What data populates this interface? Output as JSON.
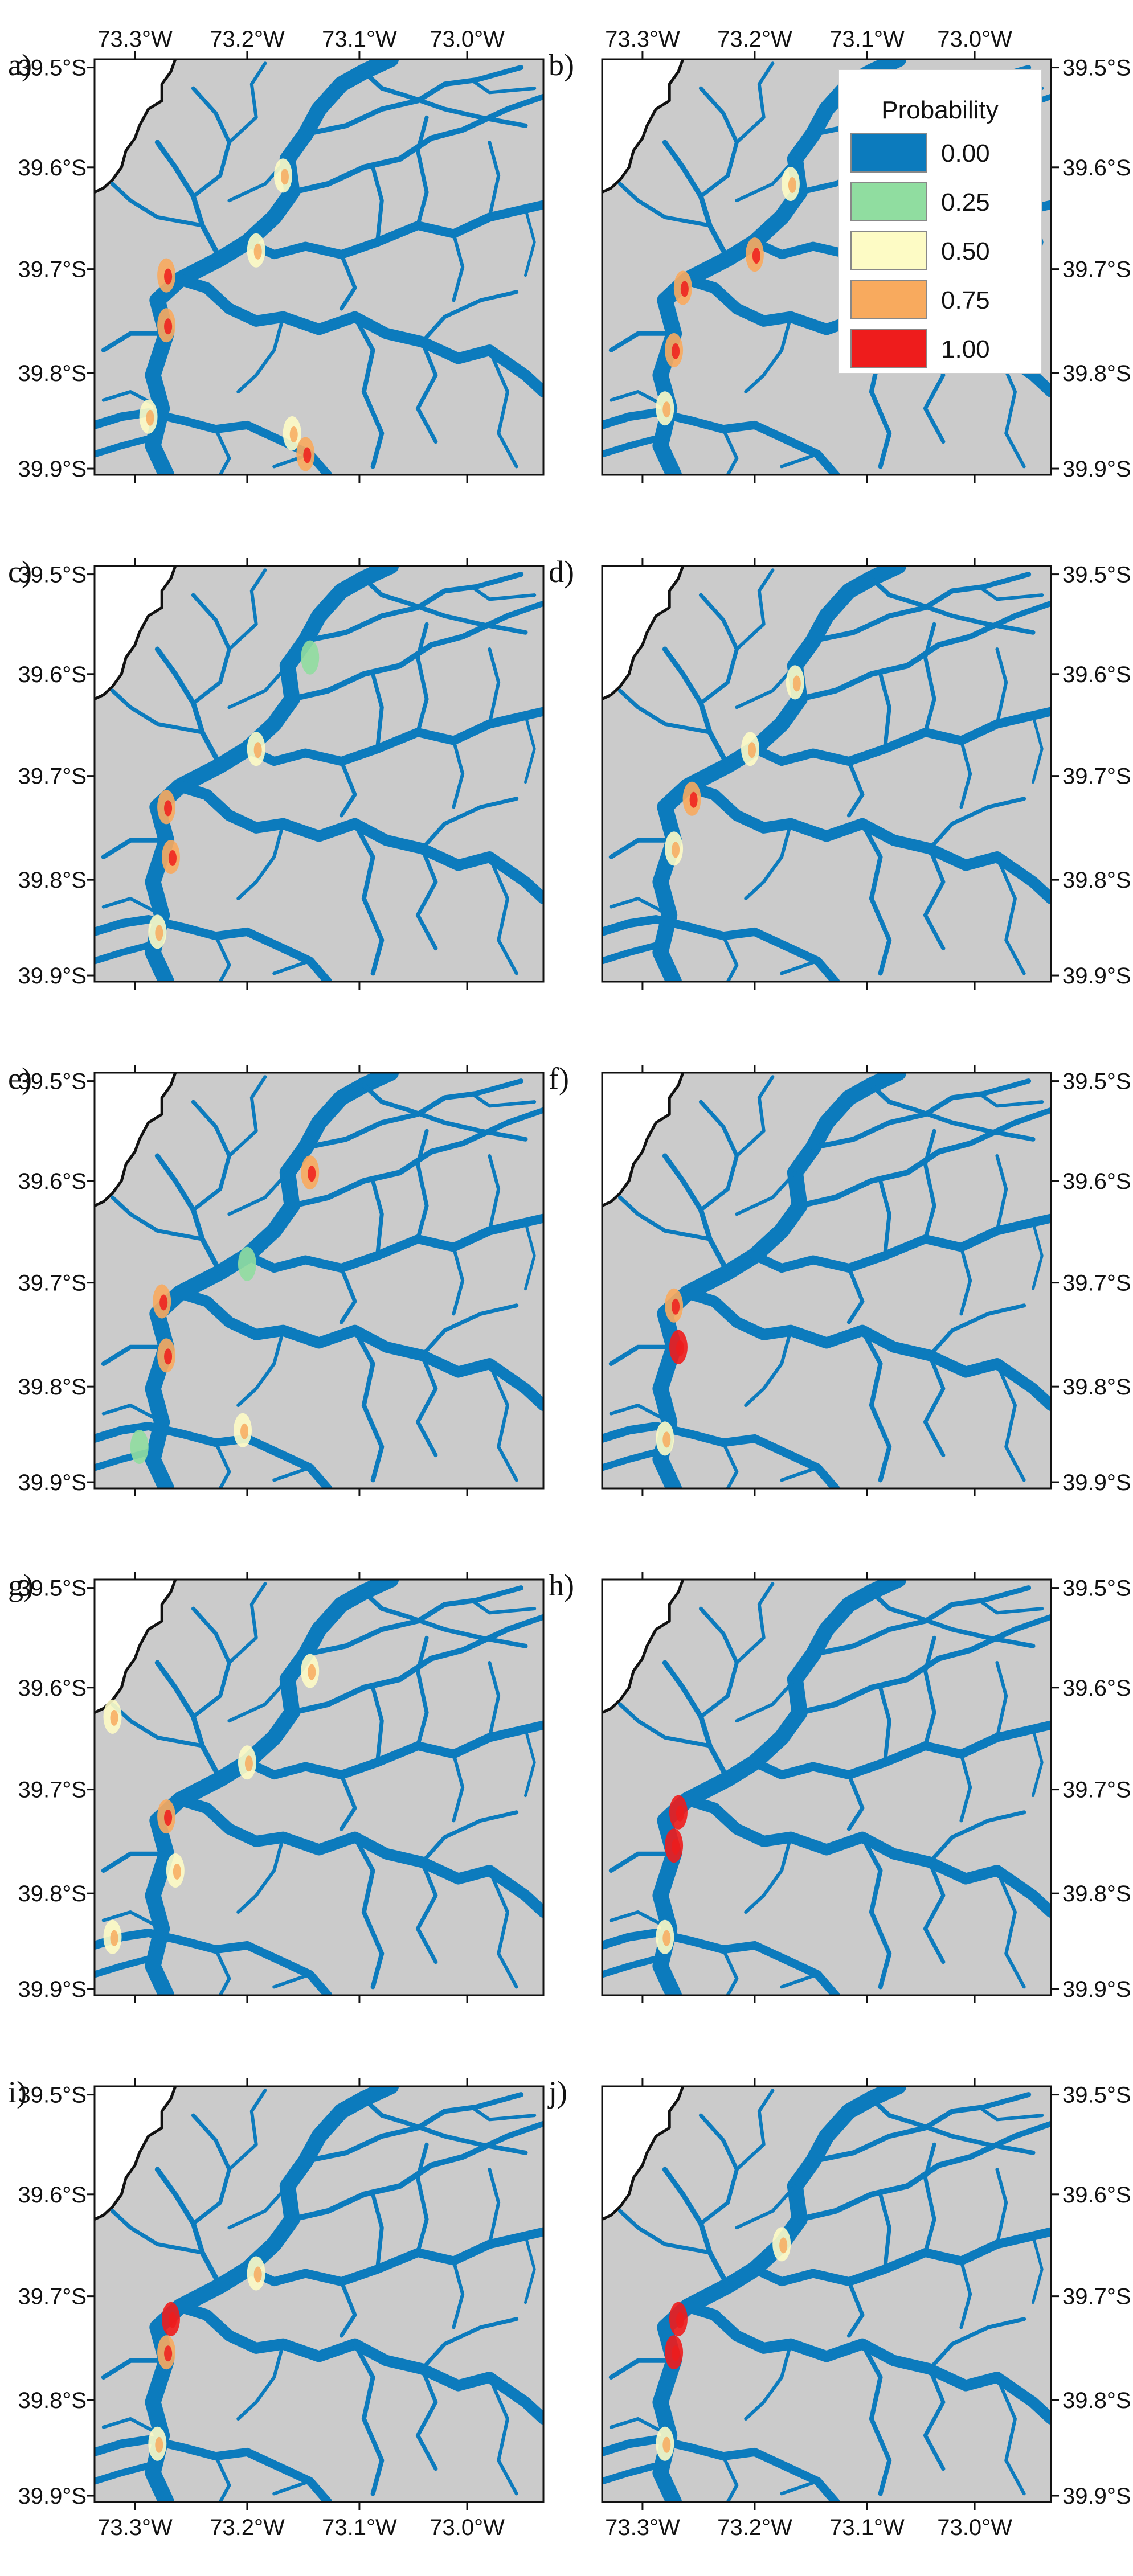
{
  "panels": [
    {
      "id": "a",
      "label": "a)",
      "hotspots": [
        [
          0.42,
          0.28,
          2
        ],
        [
          0.36,
          0.46,
          2
        ],
        [
          0.16,
          0.52,
          3
        ],
        [
          0.16,
          0.64,
          3
        ],
        [
          0.12,
          0.86,
          2
        ],
        [
          0.44,
          0.9,
          2
        ],
        [
          0.47,
          0.95,
          3
        ]
      ]
    },
    {
      "id": "b",
      "label": "b)",
      "hotspots": [
        [
          0.42,
          0.3,
          2
        ],
        [
          0.34,
          0.47,
          3
        ],
        [
          0.18,
          0.55,
          3
        ],
        [
          0.16,
          0.7,
          3
        ],
        [
          0.14,
          0.84,
          2
        ]
      ]
    },
    {
      "id": "c",
      "label": "c)",
      "hotspots": [
        [
          0.48,
          0.22,
          1
        ],
        [
          0.36,
          0.44,
          2
        ],
        [
          0.16,
          0.58,
          3
        ],
        [
          0.17,
          0.7,
          3
        ],
        [
          0.14,
          0.88,
          2
        ]
      ]
    },
    {
      "id": "d",
      "label": "d)",
      "hotspots": [
        [
          0.43,
          0.28,
          2
        ],
        [
          0.33,
          0.44,
          2
        ],
        [
          0.2,
          0.56,
          3
        ],
        [
          0.16,
          0.68,
          2
        ]
      ]
    },
    {
      "id": "e",
      "label": "e)",
      "hotspots": [
        [
          0.48,
          0.24,
          3
        ],
        [
          0.34,
          0.46,
          1
        ],
        [
          0.15,
          0.55,
          3
        ],
        [
          0.16,
          0.68,
          3
        ],
        [
          0.1,
          0.9,
          1
        ],
        [
          0.33,
          0.86,
          2
        ]
      ]
    },
    {
      "id": "f",
      "label": "f)",
      "hotspots": [
        [
          0.16,
          0.56,
          3
        ],
        [
          0.17,
          0.66,
          4
        ],
        [
          0.14,
          0.88,
          2
        ]
      ]
    },
    {
      "id": "g",
      "label": "g)",
      "hotspots": [
        [
          0.48,
          0.22,
          2
        ],
        [
          0.34,
          0.44,
          2
        ],
        [
          0.16,
          0.57,
          3
        ],
        [
          0.18,
          0.7,
          2
        ],
        [
          0.04,
          0.86,
          2
        ],
        [
          0.04,
          0.33,
          2
        ]
      ]
    },
    {
      "id": "h",
      "label": "h)",
      "hotspots": [
        [
          0.17,
          0.56,
          4
        ],
        [
          0.16,
          0.64,
          4
        ],
        [
          0.14,
          0.86,
          2
        ]
      ]
    },
    {
      "id": "i",
      "label": "i)",
      "hotspots": [
        [
          0.36,
          0.45,
          2
        ],
        [
          0.17,
          0.56,
          4
        ],
        [
          0.16,
          0.64,
          3
        ],
        [
          0.14,
          0.86,
          2
        ]
      ]
    },
    {
      "id": "j",
      "label": "j)",
      "hotspots": [
        [
          0.4,
          0.38,
          2
        ],
        [
          0.17,
          0.56,
          4
        ],
        [
          0.16,
          0.64,
          4
        ],
        [
          0.14,
          0.86,
          2
        ]
      ]
    }
  ],
  "axes": {
    "lon_ticks": [
      "73.3°W",
      "73.2°W",
      "73.1°W",
      "73.0°W"
    ],
    "lat_ticks": [
      "39.5°S",
      "39.6°S",
      "39.7°S",
      "39.8°S",
      "39.9°S"
    ]
  },
  "legend": {
    "title": "Probability",
    "entries": [
      {
        "label": "0.00",
        "color": "#0c7bbd"
      },
      {
        "label": "0.25",
        "color": "#90dda0"
      },
      {
        "label": "0.50",
        "color": "#fdfbc5"
      },
      {
        "label": "0.75",
        "color": "#f8aa5e"
      },
      {
        "label": "1.00",
        "color": "#ee1c1c"
      }
    ]
  },
  "colors": {
    "land": "#cbcbcb",
    "water": "#0c7bbd",
    "coast": "#111111",
    "sea": "#ffffff"
  },
  "chart_data": {
    "type": "map",
    "legend_placement": "top-right of panel b",
    "x_axis": "longitude (°W), tick labels top of panels a and b, bottom of panels i and j",
    "y_axis": "latitude (°S), tick labels on left for a, c, e, g, i and on right for b, d, f, h, j",
    "value_range": [
      0,
      1
    ]
  }
}
